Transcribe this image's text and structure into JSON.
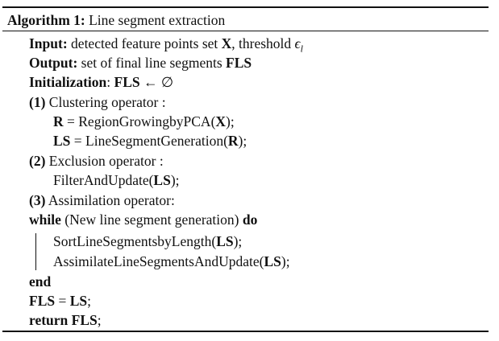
{
  "algorithm": {
    "label": "Algorithm 1:",
    "title": "Line segment extraction"
  },
  "input": {
    "keyword": "Input:",
    "text": "detected feature points set",
    "var_x": "X",
    "comma": ", threshold",
    "epsilon": "ϵ",
    "subscript": "l"
  },
  "output": {
    "keyword": "Output:",
    "text": "set of final line segments",
    "var": "FLS"
  },
  "init": {
    "keyword": "Initialization",
    "colon": ":",
    "var": "FLS",
    "rest": " ← ∅"
  },
  "step1": {
    "num": "(1)",
    "label": "Clustering operator :",
    "r_var": "R",
    "r_eq": " = RegionGrowingbyPCA(",
    "r_arg": "X",
    "r_end": ");",
    "ls_var": "LS",
    "ls_eq": " = LineSegmentGeneration(",
    "ls_arg": "R",
    "ls_end": ");"
  },
  "step2": {
    "num": "(2)",
    "label": "Exclusion operator :",
    "call": "FilterAndUpdate(",
    "arg": "LS",
    "end": ");"
  },
  "step3": {
    "num": "(3)",
    "label": "Assimilation operator:"
  },
  "while": {
    "keyword": "while",
    "condition": " (New line segment generation) ",
    "do": "do",
    "body1_call": "SortLineSegmentsbyLength(",
    "body1_arg": "LS",
    "body1_end": ");",
    "body2_call": "AssimilateLineSegmentsAndUpdate(",
    "body2_arg": "LS",
    "body2_end": ");",
    "end": "end"
  },
  "assign": {
    "lhs": "FLS",
    "eq": " = ",
    "rhs": "LS",
    "semi": ";"
  },
  "return": {
    "keyword": "return",
    "space": " ",
    "var": "FLS",
    "semi": ";"
  }
}
